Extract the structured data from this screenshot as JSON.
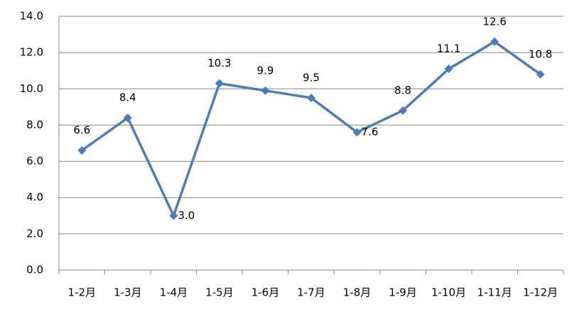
{
  "chart_data": {
    "type": "line",
    "categories": [
      "1-2月",
      "1-3月",
      "1-4月",
      "1-5月",
      "1-6月",
      "1-7月",
      "1-8月",
      "1-9月",
      "1-10月",
      "1-11月",
      "1-12月"
    ],
    "series": [
      {
        "color": "#4a7ebb",
        "values": [
          6.6,
          8.4,
          3.0,
          10.3,
          9.9,
          9.5,
          7.6,
          8.8,
          11.1,
          12.6,
          10.8
        ],
        "value_labels": [
          "6.6",
          "8.4",
          "3.0",
          "10.3",
          "9.9",
          "9.5",
          "7.6",
          "8.8",
          "11.1",
          "12.6",
          "10.8"
        ]
      }
    ],
    "ylim": [
      0,
      14
    ],
    "yticks": [
      {
        "value": 0,
        "label": "0.0"
      },
      {
        "value": 2,
        "label": "2.0"
      },
      {
        "value": 4,
        "label": "4.0"
      },
      {
        "value": 6,
        "label": "6.0"
      },
      {
        "value": 8,
        "label": "8.0"
      },
      {
        "value": 10,
        "label": "10.0"
      },
      {
        "value": 12,
        "label": "12.0"
      },
      {
        "value": 14,
        "label": "14.0"
      }
    ],
    "grid": true
  }
}
